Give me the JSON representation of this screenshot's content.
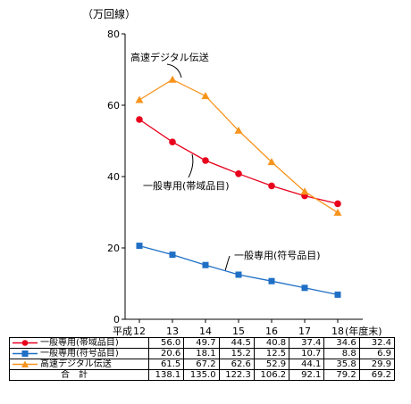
{
  "chart_data": {
    "type": "line",
    "unit_label": "（万回線）",
    "x_prefix": "平成",
    "x_suffix": "(年度末)",
    "categories": [
      "12",
      "13",
      "14",
      "15",
      "16",
      "17",
      "18"
    ],
    "ylim": [
      0,
      80
    ],
    "yticks": [
      0,
      20,
      40,
      60,
      80
    ],
    "grid": false,
    "series": [
      {
        "name": "一般専用(帯域品目)",
        "color": "#e8001c",
        "marker": "circle",
        "values": [
          56.0,
          49.7,
          44.5,
          40.8,
          37.4,
          34.6,
          32.4
        ],
        "labels": [
          "56.0",
          "49.7",
          "44.5",
          "40.8",
          "37.4",
          "34.6",
          "32.4"
        ]
      },
      {
        "name": "一般専用(符号品目)",
        "color": "#1f6fc5",
        "marker": "square",
        "values": [
          20.6,
          18.1,
          15.2,
          12.5,
          10.7,
          8.8,
          6.9
        ],
        "labels": [
          "20.6",
          "18.1",
          "15.2",
          "12.5",
          "10.7",
          "8.8",
          "6.9"
        ]
      },
      {
        "name": "高速デジタル伝送",
        "color": "#f7941d",
        "marker": "triangle",
        "values": [
          61.5,
          67.2,
          62.6,
          52.9,
          44.1,
          35.8,
          29.9
        ],
        "labels": [
          "61.5",
          "67.2",
          "62.6",
          "52.9",
          "44.1",
          "35.8",
          "29.9"
        ]
      }
    ],
    "annotations": [
      "高速デジタル伝送",
      "一般専用(帯域品目)",
      "一般専用(符号品目)"
    ],
    "total": {
      "name": "合計",
      "values": [
        "138.1",
        "135.0",
        "122.3",
        "106.2",
        "92.1",
        "79.2",
        "69.2"
      ]
    }
  }
}
